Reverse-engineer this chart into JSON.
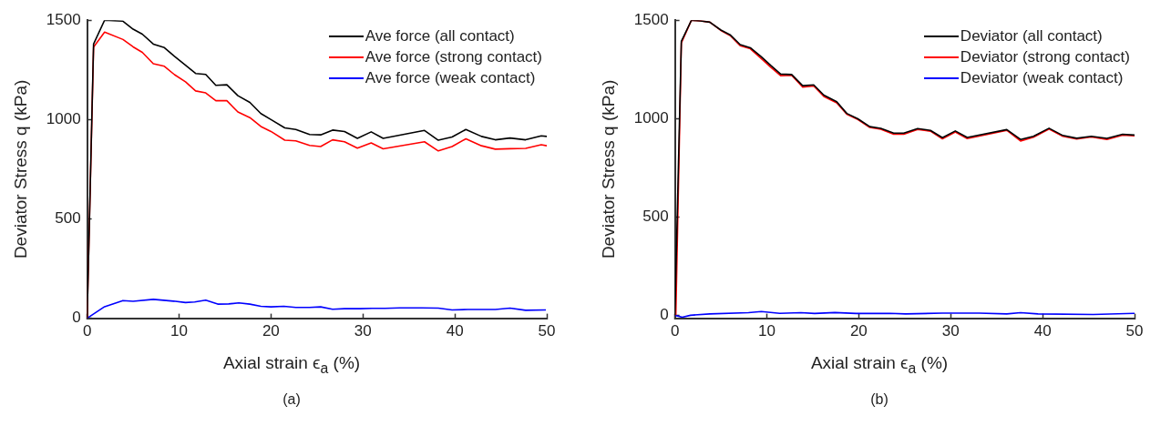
{
  "chart_data": [
    {
      "type": "line",
      "xlabel": "Axial strain ϵ$_{a}$ (%)",
      "ylabel": "Deviator Stress q (kPa)",
      "annotations": [
        "(a)"
      ],
      "xlim": [
        0,
        50
      ],
      "xticks": [
        0,
        10,
        20,
        30,
        40,
        50
      ],
      "ylim": [
        0,
        1500
      ],
      "yticks": [
        0,
        500,
        1000,
        1500
      ],
      "grid": false,
      "legend": "top right",
      "marker": "none",
      "line_style": "solid",
      "series": [
        {
          "name": "Ave force (all contact)",
          "color": "#000000",
          "x": [
            0,
            0.7,
            1.9,
            3.9,
            5.0,
            6.0,
            7.2,
            8.4,
            9.5,
            10.7,
            11.8,
            12.9,
            14.0,
            15.2,
            16.4,
            17.7,
            18.9,
            20.0,
            21.5,
            22.7,
            24.2,
            25.4,
            26.7,
            28.0,
            29.4,
            30.9,
            32.2,
            36.7,
            38.2,
            39.7,
            41.2,
            42.9,
            44.4,
            46.0,
            47.7,
            49.4,
            50.0
          ],
          "values": [
            0,
            1380,
            1500,
            1495,
            1455,
            1430,
            1380,
            1362,
            1318,
            1274,
            1232,
            1227,
            1172,
            1175,
            1120,
            1086,
            1030,
            1000,
            958,
            950,
            925,
            923,
            947,
            940,
            905,
            938,
            905,
            945,
            896,
            912,
            950,
            915,
            898,
            907,
            898,
            918,
            915
          ]
        },
        {
          "name": "Ave force (strong contact)",
          "color": "#ff0000",
          "x": [
            0,
            0.7,
            1.9,
            3.9,
            5.0,
            6.0,
            7.2,
            8.4,
            9.5,
            10.7,
            11.8,
            12.9,
            14.0,
            15.2,
            16.4,
            17.7,
            18.9,
            20.0,
            21.5,
            22.7,
            24.2,
            25.4,
            26.7,
            28.0,
            29.4,
            30.9,
            32.2,
            36.7,
            38.2,
            39.7,
            41.2,
            42.9,
            44.4,
            46.0,
            47.7,
            49.4,
            50.0
          ],
          "values": [
            0,
            1365,
            1440,
            1403,
            1366,
            1338,
            1281,
            1268,
            1226,
            1190,
            1144,
            1134,
            1095,
            1095,
            1038,
            1010,
            965,
            940,
            896,
            893,
            870,
            864,
            898,
            888,
            856,
            882,
            853,
            888,
            842,
            864,
            903,
            868,
            851,
            853,
            855,
            873,
            868
          ]
        },
        {
          "name": "Ave force (weak contact)",
          "color": "#0000ff",
          "x": [
            0,
            1.9,
            3.9,
            5.0,
            7.2,
            9.4,
            10.7,
            11.7,
            12.9,
            14.2,
            15.4,
            16.5,
            17.7,
            18.9,
            20.0,
            21.4,
            22.7,
            24.2,
            25.4,
            26.7,
            28.0,
            29.7,
            31.0,
            32.4,
            34.0,
            36.4,
            38.2,
            39.7,
            41.4,
            44.4,
            46.0,
            47.7,
            49.9
          ],
          "values": [
            0,
            58,
            89,
            85,
            95,
            86,
            79,
            82,
            91,
            71,
            72,
            77,
            71,
            60,
            57,
            60,
            54,
            54,
            57,
            45,
            48,
            48,
            50,
            50,
            52,
            52,
            51,
            42,
            44,
            44,
            51,
            40,
            42
          ]
        }
      ]
    },
    {
      "type": "line",
      "xlabel": "Axial strain ϵ$_{a}$ (%)",
      "ylabel": "Deviator Stress q (kPa)",
      "annotations": [
        "(b)"
      ],
      "xlim": [
        0,
        50
      ],
      "xticks": [
        0,
        10,
        20,
        30,
        40,
        50
      ],
      "ylim": [
        -15,
        1500
      ],
      "yticks": [
        0,
        500,
        1000,
        1500
      ],
      "grid": false,
      "legend": "top right",
      "marker": "none",
      "line_style": "solid",
      "series": [
        {
          "name": "Deviator (all contact)",
          "color": "#000000",
          "x": [
            0,
            0.7,
            1.8,
            2.8,
            3.8,
            5.0,
            6.0,
            7.1,
            8.2,
            9.4,
            10.4,
            11.5,
            12.7,
            13.9,
            15.1,
            16.2,
            17.6,
            18.7,
            19.9,
            21.2,
            22.4,
            23.8,
            24.9,
            26.4,
            27.8,
            29.1,
            30.5,
            31.8,
            36.1,
            37.6,
            39.0,
            40.7,
            42.2,
            43.7,
            45.3,
            47.0,
            48.7,
            50.0
          ],
          "values": [
            0,
            1393,
            1500,
            1496,
            1490,
            1450,
            1426,
            1376,
            1360,
            1314,
            1271,
            1226,
            1224,
            1167,
            1171,
            1119,
            1086,
            1026,
            999,
            959,
            950,
            926,
            926,
            949,
            940,
            903,
            937,
            904,
            944,
            894,
            910,
            951,
            914,
            900,
            910,
            899,
            920,
            916
          ]
        },
        {
          "name": "Deviator (strong contact)",
          "color": "#ff0000",
          "x": [
            0.1,
            0.7,
            1.8,
            2.8,
            3.8,
            5.0,
            6.0,
            7.1,
            8.2,
            9.4,
            10.4,
            11.5,
            12.7,
            13.9,
            15.1,
            16.2,
            17.6,
            18.7,
            19.9,
            21.2,
            22.4,
            23.8,
            24.9,
            26.4,
            27.8,
            29.1,
            30.5,
            31.8,
            36.1,
            37.6,
            39.0,
            40.7,
            42.2,
            43.7,
            45.3,
            47.0,
            48.7,
            50.0
          ],
          "values": [
            0,
            1385,
            1500,
            1496,
            1490,
            1448,
            1422,
            1370,
            1355,
            1305,
            1262,
            1218,
            1220,
            1160,
            1166,
            1112,
            1080,
            1022,
            995,
            955,
            946,
            920,
            920,
            945,
            936,
            897,
            932,
            898,
            940,
            886,
            905,
            947,
            910,
            896,
            906,
            894,
            916,
            912
          ]
        },
        {
          "name": "Deviator (weak contact)",
          "color": "#0000ff",
          "x": [
            0,
            0.8,
            1.7,
            3.8,
            8.0,
            9.4,
            11.4,
            13.7,
            15.2,
            17.4,
            19.7,
            23.4,
            25.1,
            29.1,
            33.1,
            36.1,
            37.6,
            39.5,
            45.5,
            50.0
          ],
          "values": [
            0,
            -10,
            0,
            7,
            13,
            19,
            10,
            13,
            9,
            14,
            9,
            10,
            7,
            11,
            11,
            7,
            13,
            7,
            4,
            10
          ]
        }
      ]
    }
  ]
}
